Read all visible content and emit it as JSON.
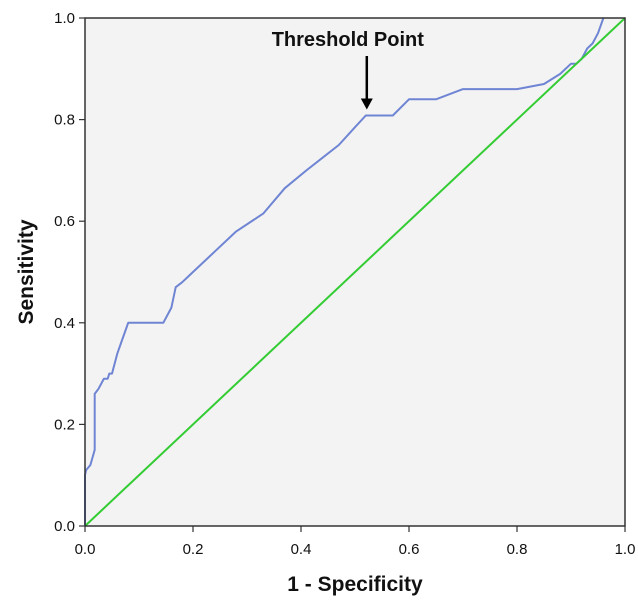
{
  "chart_data": {
    "type": "line",
    "title": "",
    "xlabel": "1 - Specificity",
    "ylabel": "Sensitivity",
    "xlim": [
      0,
      1
    ],
    "ylim": [
      0,
      1
    ],
    "x_ticks": [
      "0.0",
      "0.2",
      "0.4",
      "0.6",
      "0.8",
      "1.0"
    ],
    "y_ticks": [
      "0.0",
      "0.2",
      "0.4",
      "0.6",
      "0.8",
      "1.0"
    ],
    "grid": false,
    "legend": "none",
    "background_color": "#f3f3f3",
    "series": [
      {
        "color": "#6f85d4",
        "x": [
          0,
          0,
          0.002,
          0.01,
          0.018,
          0.018,
          0.025,
          0.035,
          0.042,
          0.045,
          0.05,
          0.055,
          0.06,
          0.07,
          0.08,
          0.145,
          0.16,
          0.168,
          0.18,
          0.19,
          0.2,
          0.24,
          0.28,
          0.33,
          0.37,
          0.41,
          0.44,
          0.47,
          0.5,
          0.52,
          0.57,
          0.6,
          0.65,
          0.7,
          0.75,
          0.8,
          0.85,
          0.88,
          0.9,
          0.91,
          0.92,
          0.93,
          0.94,
          0.95,
          0.96
        ],
        "y": [
          0,
          0.1,
          0.11,
          0.12,
          0.15,
          0.26,
          0.27,
          0.29,
          0.29,
          0.3,
          0.3,
          0.32,
          0.34,
          0.37,
          0.4,
          0.4,
          0.43,
          0.47,
          0.48,
          0.49,
          0.5,
          0.54,
          0.58,
          0.615,
          0.665,
          0.7,
          0.725,
          0.75,
          0.785,
          0.808,
          0.808,
          0.84,
          0.84,
          0.86,
          0.86,
          0.86,
          0.87,
          0.89,
          0.91,
          0.91,
          0.92,
          0.94,
          0.95,
          0.97,
          1.0
        ]
      },
      {
        "color": "#33cc33",
        "x": [
          0,
          1
        ],
        "y": [
          0,
          1
        ]
      }
    ],
    "annotations": [
      {
        "text": "Threshold Point",
        "x": 0.52,
        "y": 0.808
      }
    ]
  }
}
